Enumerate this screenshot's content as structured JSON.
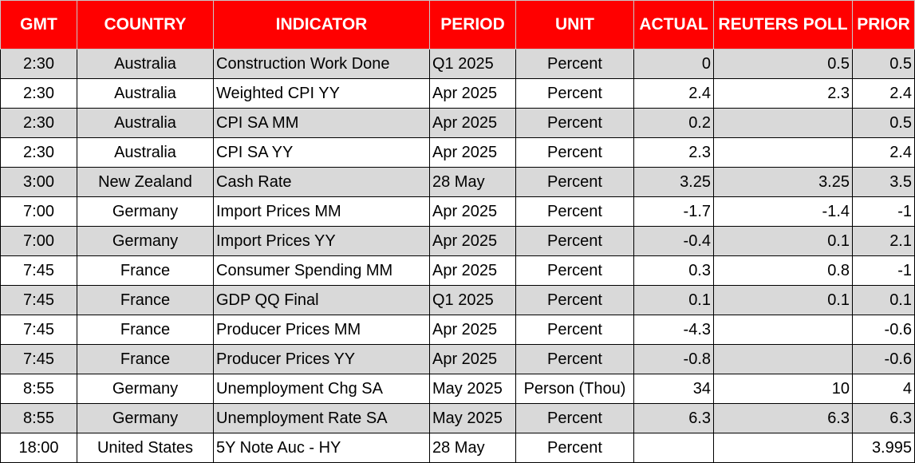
{
  "table": {
    "headers": [
      "GMT",
      "COUNTRY",
      "INDICATOR",
      "PERIOD",
      "UNIT",
      "ACTUAL",
      "REUTERS POLL",
      "PRIOR"
    ],
    "rows": [
      [
        "2:30",
        "Australia",
        "Construction Work Done",
        "Q1 2025",
        "Percent",
        "0",
        "0.5",
        "0.5"
      ],
      [
        "2:30",
        "Australia",
        "Weighted CPI YY",
        "Apr 2025",
        "Percent",
        "2.4",
        "2.3",
        "2.4"
      ],
      [
        "2:30",
        "Australia",
        "CPI SA MM",
        "Apr 2025",
        "Percent",
        "0.2",
        "",
        "0.5"
      ],
      [
        "2:30",
        "Australia",
        "CPI SA YY",
        "Apr 2025",
        "Percent",
        "2.3",
        "",
        "2.4"
      ],
      [
        "3:00",
        "New Zealand",
        "Cash Rate",
        "28 May",
        "Percent",
        "3.25",
        "3.25",
        "3.5"
      ],
      [
        "7:00",
        "Germany",
        "Import Prices MM",
        "Apr 2025",
        "Percent",
        "-1.7",
        "-1.4",
        "-1"
      ],
      [
        "7:00",
        "Germany",
        "Import Prices YY",
        "Apr 2025",
        "Percent",
        "-0.4",
        "0.1",
        "2.1"
      ],
      [
        "7:45",
        "France",
        "Consumer Spending MM",
        "Apr 2025",
        "Percent",
        "0.3",
        "0.8",
        "-1"
      ],
      [
        "7:45",
        "France",
        "GDP QQ Final",
        "Q1 2025",
        "Percent",
        "0.1",
        "0.1",
        "0.1"
      ],
      [
        "7:45",
        "France",
        "Producer Prices MM",
        "Apr 2025",
        "Percent",
        "-4.3",
        "",
        "-0.6"
      ],
      [
        "7:45",
        "France",
        "Producer Prices YY",
        "Apr 2025",
        "Percent",
        "-0.8",
        "",
        "-0.6"
      ],
      [
        "8:55",
        "Germany",
        "Unemployment Chg SA",
        "May 2025",
        "Person (Thou)",
        "34",
        "10",
        "4"
      ],
      [
        "8:55",
        "Germany",
        "Unemployment Rate SA",
        "May 2025",
        "Percent",
        "6.3",
        "6.3",
        "6.3"
      ],
      [
        "18:00",
        "United States",
        "5Y Note Auc - HY",
        "28 May",
        "Percent",
        "",
        "",
        "3.995"
      ]
    ]
  },
  "colors": {
    "header_bg": "#ff0000",
    "header_text": "#ffffff",
    "stripe": "#d9d9d9"
  }
}
